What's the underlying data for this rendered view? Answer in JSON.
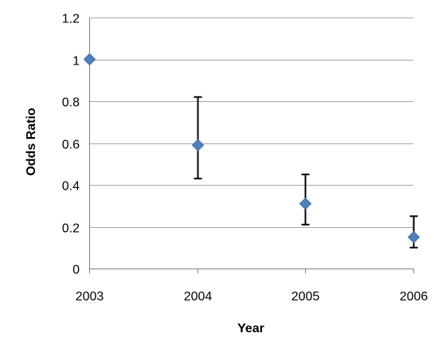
{
  "chart_data": {
    "type": "scatter",
    "title": "",
    "xlabel": "Year",
    "ylabel": "Odds Ratio",
    "categories": [
      "2003",
      "2004",
      "2005",
      "2006"
    ],
    "series": [
      {
        "values": [
          1.0,
          0.59,
          0.31,
          0.15
        ],
        "error_low": [
          1.0,
          0.43,
          0.21,
          0.1
        ],
        "error_high": [
          1.0,
          0.82,
          0.45,
          0.25
        ]
      }
    ],
    "ylim": [
      0,
      1.2
    ],
    "yticks": [
      0,
      0.2,
      0.4,
      0.6,
      0.8,
      1,
      1.2
    ],
    "ytick_labels": [
      "0",
      "0.2",
      "0.4",
      "0.6",
      "0.8",
      "1",
      "1.2"
    ],
    "grid": true,
    "legend": "none",
    "colors": {
      "marker": "#4F81BD",
      "marker_edge": "#3A6EA5",
      "grid": "#a6a6a6",
      "axis": "#7f7f7f",
      "error_bar": "#000000"
    }
  }
}
